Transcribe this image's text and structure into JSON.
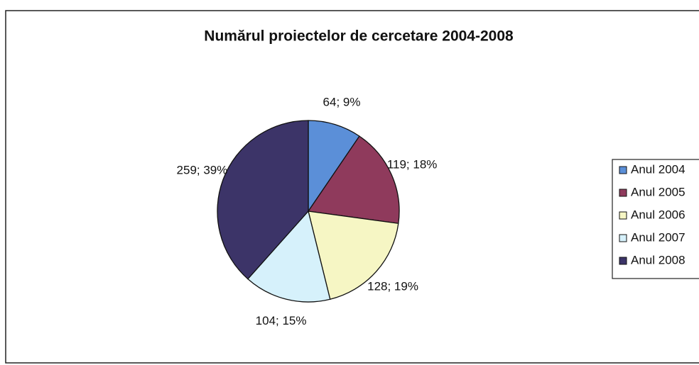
{
  "chart_data": {
    "type": "pie",
    "title": "Numărul proiectelor de cercetare 2004-2008",
    "categories": [
      "Anul 2004",
      "Anul 2005",
      "Anul 2006",
      "Anul 2007",
      "Anul 2008"
    ],
    "values": [
      64,
      119,
      128,
      104,
      259
    ],
    "value_labels": [
      "64; 9%",
      "119; 18%",
      "128; 19%",
      "104; 15%",
      "259; 39%"
    ],
    "colors": [
      "#5b8fd8",
      "#8f3a5c",
      "#f6f6c4",
      "#d6f1fb",
      "#3c3468"
    ],
    "legend": "right"
  }
}
